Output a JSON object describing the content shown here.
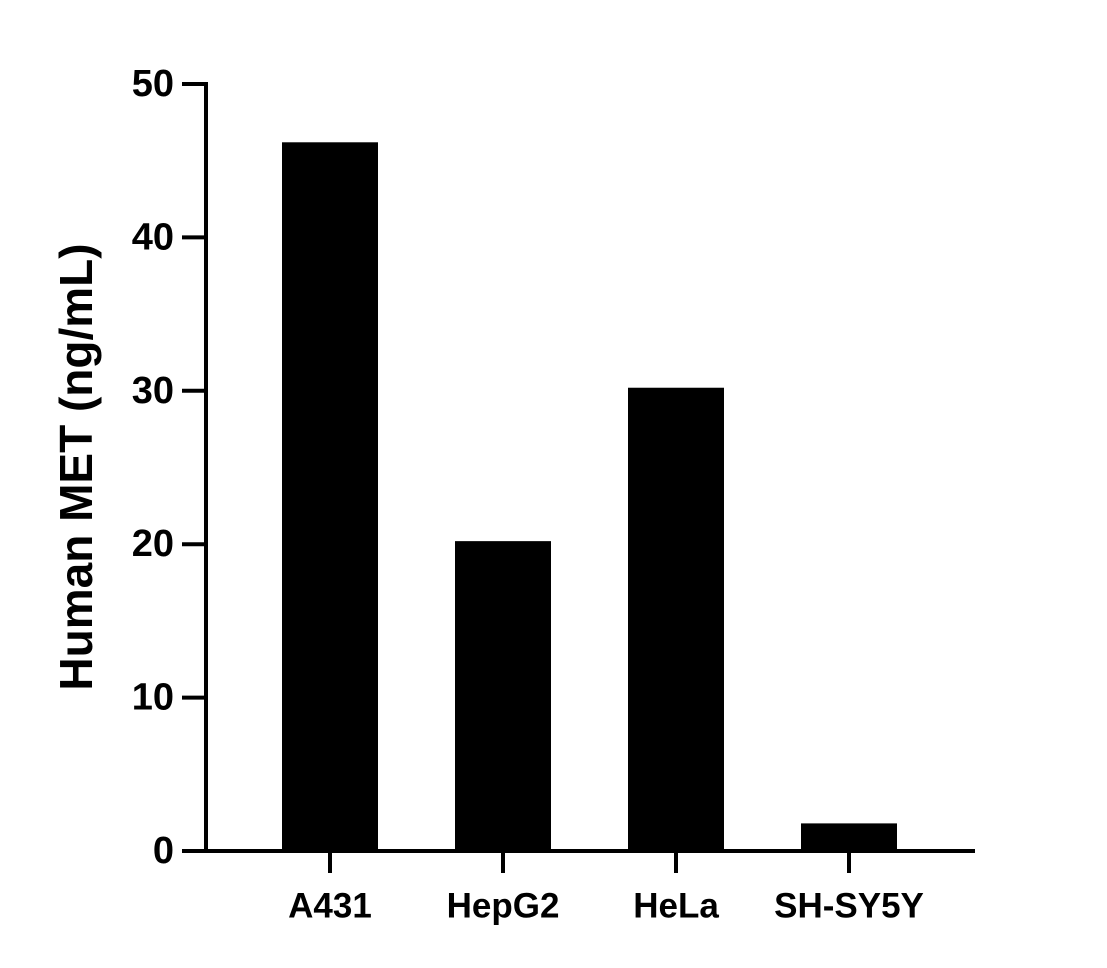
{
  "chart_data": {
    "type": "bar",
    "y_label": "Human MET (ng/mL)",
    "categories": [
      "A431",
      "HepG2",
      "HeLa",
      "SH-SY5Y"
    ],
    "values": [
      46.2,
      20.2,
      30.2,
      1.8
    ],
    "color": "#000000",
    "ylim": [
      0,
      50
    ],
    "yticks": [
      0,
      10,
      20,
      30,
      40,
      50
    ]
  }
}
